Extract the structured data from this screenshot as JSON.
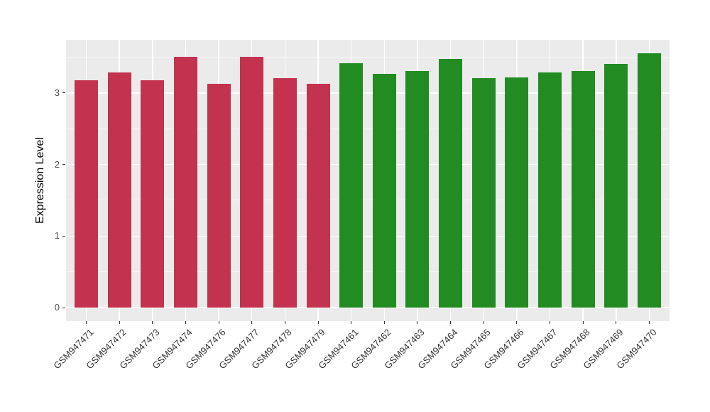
{
  "chart_data": {
    "type": "bar",
    "title": "",
    "xlabel": "",
    "ylabel": "Expression Level",
    "ylim": [
      0,
      3.75
    ],
    "y_ticks": [
      0,
      1,
      2,
      3
    ],
    "y_minor_ticks": [
      0.5,
      1.5,
      2.5,
      3.5
    ],
    "grid": true,
    "legend_position": "none",
    "panel_background": "#EBEBEB",
    "gridline_color": "#FFFFFF",
    "group_colors": {
      "red": "#C3324E",
      "green": "#228B22"
    },
    "categories": [
      "GSM947471",
      "GSM947472",
      "GSM947473",
      "GSM947474",
      "GSM947476",
      "GSM947477",
      "GSM947478",
      "GSM947479",
      "GSM947461",
      "GSM947462",
      "GSM947463",
      "GSM947464",
      "GSM947465",
      "GSM947466",
      "GSM947467",
      "GSM947468",
      "GSM947469",
      "GSM947470"
    ],
    "bars": [
      {
        "label": "GSM947471",
        "value": 3.18,
        "group": "red"
      },
      {
        "label": "GSM947472",
        "value": 3.29,
        "group": "red"
      },
      {
        "label": "GSM947473",
        "value": 3.18,
        "group": "red"
      },
      {
        "label": "GSM947474",
        "value": 3.51,
        "group": "red"
      },
      {
        "label": "GSM947476",
        "value": 3.13,
        "group": "red"
      },
      {
        "label": "GSM947477",
        "value": 3.51,
        "group": "red"
      },
      {
        "label": "GSM947478",
        "value": 3.21,
        "group": "red"
      },
      {
        "label": "GSM947479",
        "value": 3.13,
        "group": "red"
      },
      {
        "label": "GSM947461",
        "value": 3.42,
        "group": "green"
      },
      {
        "label": "GSM947462",
        "value": 3.27,
        "group": "green"
      },
      {
        "label": "GSM947463",
        "value": 3.31,
        "group": "green"
      },
      {
        "label": "GSM947464",
        "value": 3.48,
        "group": "green"
      },
      {
        "label": "GSM947465",
        "value": 3.21,
        "group": "green"
      },
      {
        "label": "GSM947466",
        "value": 3.22,
        "group": "green"
      },
      {
        "label": "GSM947467",
        "value": 3.29,
        "group": "green"
      },
      {
        "label": "GSM947468",
        "value": 3.31,
        "group": "green"
      },
      {
        "label": "GSM947469",
        "value": 3.41,
        "group": "green"
      },
      {
        "label": "GSM947470",
        "value": 3.56,
        "group": "green"
      }
    ]
  }
}
